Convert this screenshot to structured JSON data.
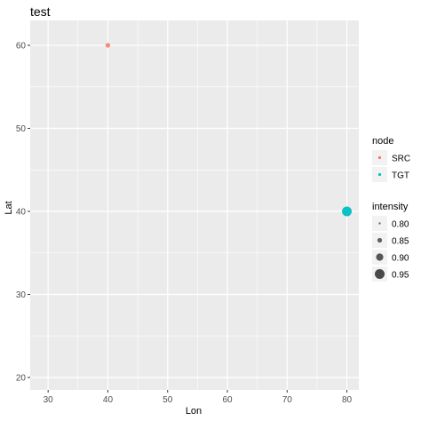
{
  "chart_data": {
    "type": "scatter",
    "title": "test",
    "xlabel": "Lon",
    "ylabel": "Lat",
    "xlim": [
      27,
      82
    ],
    "ylim": [
      18.5,
      63
    ],
    "x_ticks": [
      30,
      40,
      50,
      60,
      70,
      80
    ],
    "y_ticks": [
      20,
      30,
      40,
      50,
      60
    ],
    "grid": true,
    "points": [
      {
        "lon": 40,
        "lat": 60,
        "node": "SRC",
        "intensity": 0.85
      },
      {
        "lon": 80,
        "lat": 40,
        "node": "TGT",
        "intensity": 0.95
      }
    ],
    "legend": {
      "placement": "right",
      "color": {
        "title": "node",
        "entries": [
          {
            "label": "SRC",
            "color": "#F8766D"
          },
          {
            "label": "TGT",
            "color": "#00BFC4"
          }
        ]
      },
      "size": {
        "title": "intensity",
        "entries": [
          {
            "label": "0.80",
            "value": 0.8
          },
          {
            "label": "0.85",
            "value": 0.85
          },
          {
            "label": "0.90",
            "value": 0.9
          },
          {
            "label": "0.95",
            "value": 0.95
          }
        ]
      }
    },
    "colors": {
      "panel_bg": "#EBEBEB",
      "grid_major": "#FFFFFF",
      "SRC": "#F8766D",
      "TGT": "#00BFC4"
    }
  }
}
